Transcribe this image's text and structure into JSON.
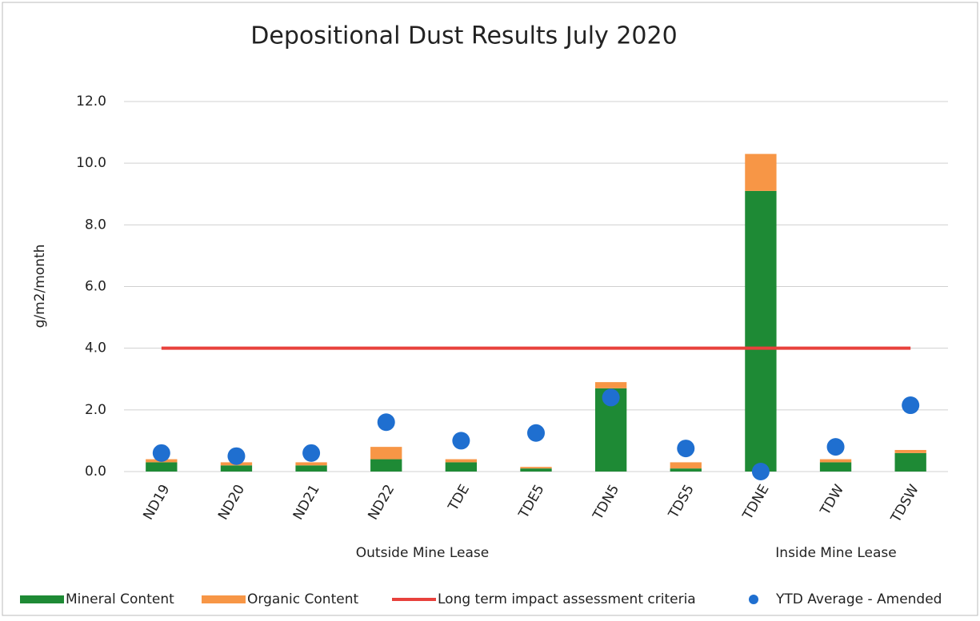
{
  "chart_data": {
    "type": "bar",
    "title": "Depositional Dust Results July 2020",
    "y_label": "g/m2/month",
    "categories": [
      "ND19",
      "ND20",
      "ND21",
      "ND22",
      "TDE",
      "TDE5",
      "TDN5",
      "TDS5",
      "TDNE",
      "TDW",
      "TDSW"
    ],
    "group_labels": [
      "Outside Mine Lease",
      "Inside Mine Lease"
    ],
    "series": [
      {
        "name": "Mineral Content",
        "kind": "bar",
        "color": "#1e8a35",
        "values": [
          0.3,
          0.2,
          0.2,
          0.4,
          0.3,
          0.1,
          2.7,
          0.1,
          9.1,
          0.3,
          0.6
        ]
      },
      {
        "name": "Organic Content",
        "kind": "bar",
        "color": "#f79646",
        "values": [
          0.1,
          0.1,
          0.1,
          0.4,
          0.1,
          0.05,
          0.2,
          0.2,
          1.2,
          0.1,
          0.1
        ]
      },
      {
        "name": "Long term impact assessment criteria",
        "kind": "line",
        "color": "#e8413c",
        "values": [
          4,
          4,
          4,
          4,
          4,
          4,
          4,
          4,
          4,
          4,
          4
        ]
      },
      {
        "name": "YTD Average - Amended",
        "kind": "dot",
        "color": "#1f6fd0",
        "values": [
          0.6,
          0.5,
          0.6,
          1.6,
          1.0,
          1.25,
          2.4,
          0.75,
          0.0,
          0.8,
          2.15
        ]
      }
    ],
    "ylim": [
      0,
      12
    ],
    "yticks": [
      {
        "value": 0,
        "label": "0.0"
      },
      {
        "value": 2,
        "label": "2.0"
      },
      {
        "value": 4,
        "label": "4.0"
      },
      {
        "value": 6,
        "label": "6.0"
      },
      {
        "value": 8,
        "label": "8.0"
      },
      {
        "value": 10,
        "label": "10.0"
      },
      {
        "value": 12,
        "label": "12.0"
      }
    ],
    "grid": true
  }
}
